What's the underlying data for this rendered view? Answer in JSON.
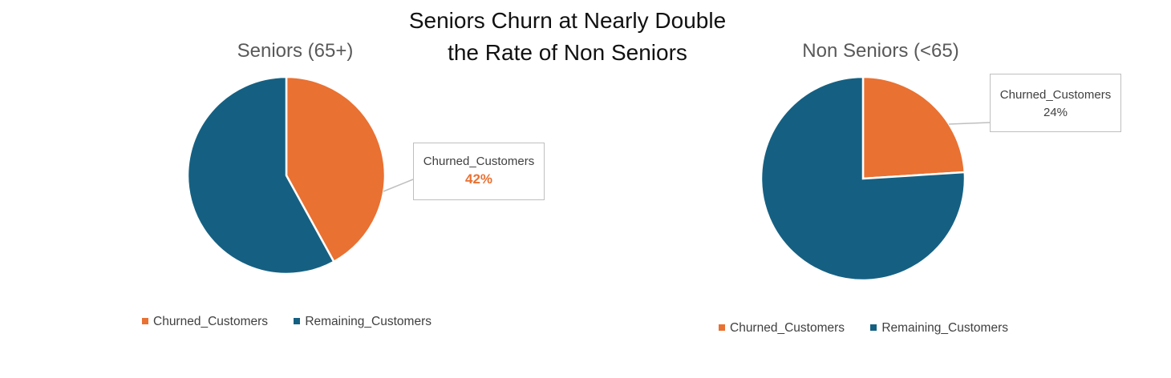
{
  "title": "Seniors Churn at Nearly Double\nthe Rate of Non Seniors",
  "colors": {
    "churned": "#e97132",
    "remaining": "#156082"
  },
  "chart_data": [
    {
      "type": "pie",
      "title": "Seniors (65+)",
      "categories": [
        "Churned_Customers",
        "Remaining_Customers"
      ],
      "values": [
        42,
        58
      ],
      "data_labels": [
        {
          "category": "Churned_Customers",
          "value": "42%"
        }
      ],
      "legend": [
        "Churned_Customers",
        "Remaining_Customers"
      ],
      "legend_position": "bottom"
    },
    {
      "type": "pie",
      "title": "Non Seniors (<65)",
      "categories": [
        "Churned_Customers",
        "Remaining_Customers"
      ],
      "values": [
        24,
        76
      ],
      "data_labels": [
        {
          "category": "Churned_Customers",
          "value": "24%"
        }
      ],
      "legend": [
        "Churned_Customers",
        "Remaining_Customers"
      ],
      "legend_position": "bottom"
    }
  ]
}
